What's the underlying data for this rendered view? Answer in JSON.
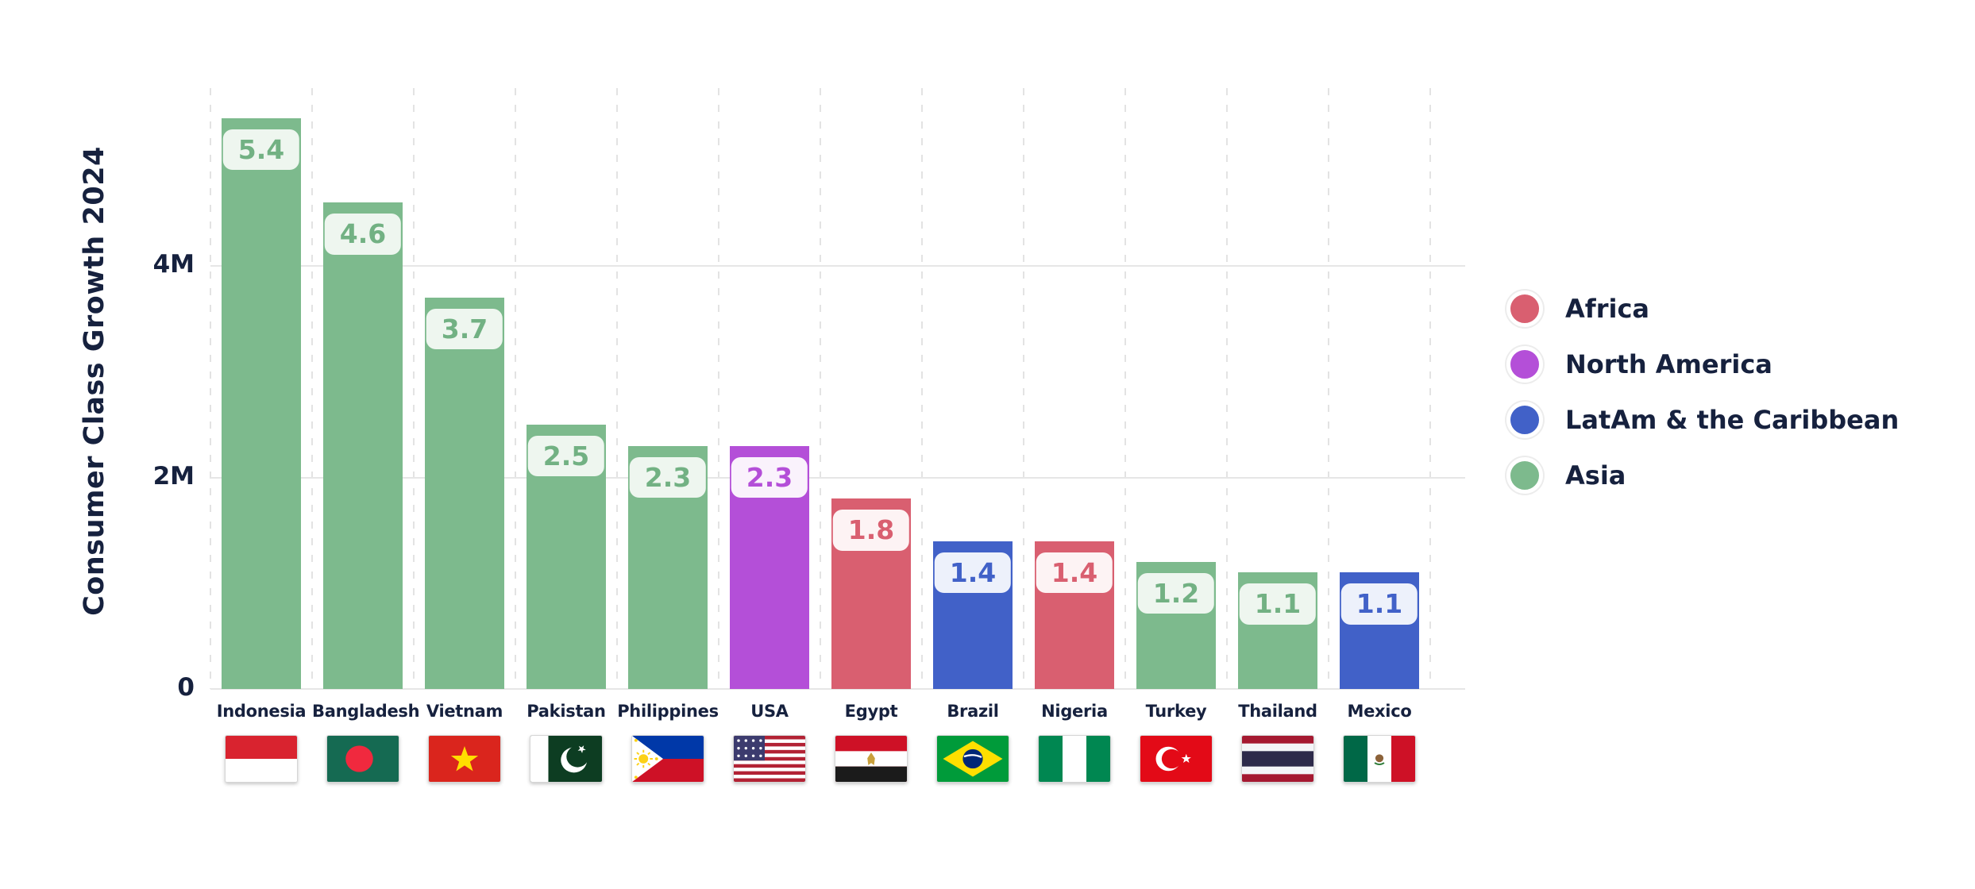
{
  "chart_data": {
    "type": "bar",
    "ylabel": "Consumer Class Growth 2024",
    "ylim_m": [
      0,
      5.7
    ],
    "grid": true,
    "legend_position": "right",
    "yticks": [
      {
        "value": 0,
        "label": "0"
      },
      {
        "value": 2000000,
        "label": "2M"
      },
      {
        "value": 4000000,
        "label": "4M"
      }
    ],
    "bars": [
      {
        "country": "Indonesia",
        "value_m": 5.4,
        "label": "5.4",
        "region": "Asia",
        "flag": "indonesia"
      },
      {
        "country": "Bangladesh",
        "value_m": 4.6,
        "label": "4.6",
        "region": "Asia",
        "flag": "bangladesh"
      },
      {
        "country": "Vietnam",
        "value_m": 3.7,
        "label": "3.7",
        "region": "Asia",
        "flag": "vietnam"
      },
      {
        "country": "Pakistan",
        "value_m": 2.5,
        "label": "2.5",
        "region": "Asia",
        "flag": "pakistan"
      },
      {
        "country": "Philippines",
        "value_m": 2.3,
        "label": "2.3",
        "region": "Asia",
        "flag": "philippines"
      },
      {
        "country": "USA",
        "value_m": 2.3,
        "label": "2.3",
        "region": "North America",
        "flag": "usa"
      },
      {
        "country": "Egypt",
        "value_m": 1.8,
        "label": "1.8",
        "region": "Africa",
        "flag": "egypt"
      },
      {
        "country": "Brazil",
        "value_m": 1.4,
        "label": "1.4",
        "region": "LatAm & the Caribbean",
        "flag": "brazil"
      },
      {
        "country": "Nigeria",
        "value_m": 1.4,
        "label": "1.4",
        "region": "Africa",
        "flag": "nigeria"
      },
      {
        "country": "Turkey",
        "value_m": 1.2,
        "label": "1.2",
        "region": "Asia",
        "flag": "turkey"
      },
      {
        "country": "Thailand",
        "value_m": 1.1,
        "label": "1.1",
        "region": "Asia",
        "flag": "thailand"
      },
      {
        "country": "Mexico",
        "value_m": 1.1,
        "label": "1.1",
        "region": "LatAm & the Caribbean",
        "flag": "mexico"
      }
    ],
    "legend": [
      {
        "label": "Africa",
        "color": "#d95f70"
      },
      {
        "label": "North America",
        "color": "#b44fd8"
      },
      {
        "label": "LatAm & the Caribbean",
        "color": "#4161c8"
      },
      {
        "label": "Asia",
        "color": "#7dba8d"
      }
    ],
    "region_styles": {
      "Africa": {
        "bar": "#d95f70",
        "badge_bg": "#fdf3f4",
        "badge_text": "#d95f70"
      },
      "North America": {
        "bar": "#b44fd8",
        "badge_bg": "#faf2fc",
        "badge_text": "#b44fd8"
      },
      "LatAm & the Caribbean": {
        "bar": "#4161c8",
        "badge_bg": "#edf1fb",
        "badge_text": "#4161c8"
      },
      "Asia": {
        "bar": "#7dba8d",
        "badge_bg": "#eef6ef",
        "badge_text": "#72b183"
      }
    },
    "axis_color": "#16213e",
    "grid_color": "#e6e6e6"
  }
}
